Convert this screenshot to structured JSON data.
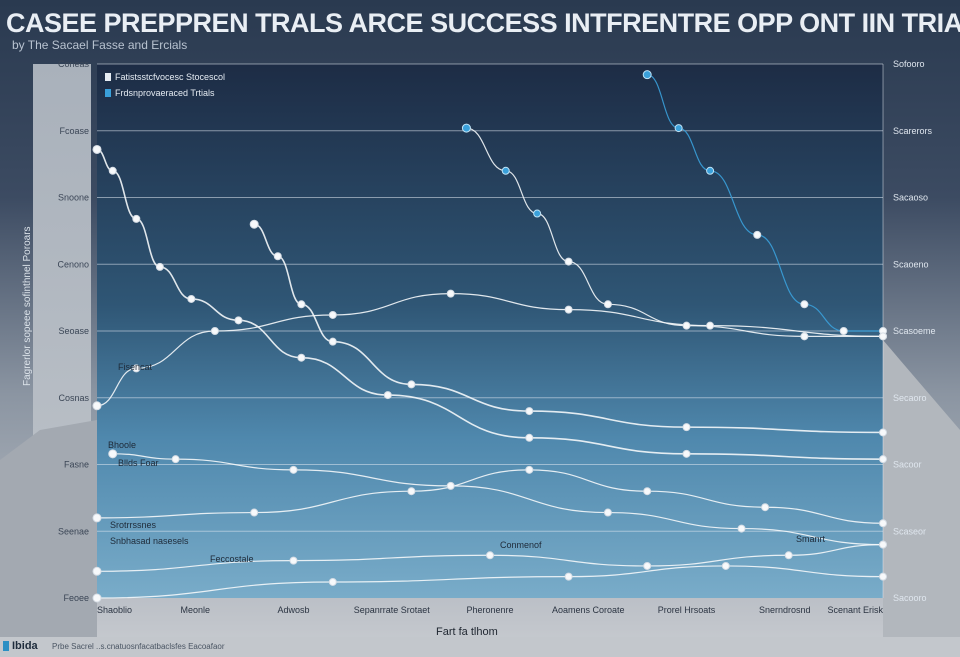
{
  "header": {
    "title": "CASEE PREPPREN TRALS ARCE SUCCESS INTFRENTRE OPP ONT IIN TRIALS",
    "subtitle": "by The Sacael Fasse and Ercials"
  },
  "footer": {
    "title": "Ibida",
    "note": "Prbe Sacrel ..s.cnatuosnfacatbaclsfes Eacoafaor"
  },
  "colors": {
    "accent": "#2a8fc4",
    "line": "#f4f7fa",
    "grid": "#dfe6ee",
    "marker_blue": "#3aa0da"
  },
  "chart_data": {
    "type": "line",
    "xlabel": "Fart fa tlhom",
    "ylabel": "Fagrerlor sopeee sofinthnel Poroars",
    "categories": [
      "Shaoblio",
      "Meonle",
      "Adwosb",
      "Sepanrrate Srotaet",
      "Pheronenre",
      "Aoamens Coroate",
      "Prorel Hrsoats",
      "Snerndrosnd",
      "Scenant Erisk"
    ],
    "y_ticks_left": [
      "Coneas",
      "Fcoase",
      "Snoone",
      "Cenono",
      "Seoase",
      "Cosnas",
      "Fasne",
      "Seenae",
      "Feoee"
    ],
    "y_ticks_right": [
      "Sofooro",
      "Scarerors",
      "Sacaoso",
      "Scaoeno",
      "Scasoeme",
      "Secaoro",
      "Sacoor",
      "Scaseor",
      "Sacooro"
    ],
    "ylim": [
      0,
      100
    ],
    "grid": true,
    "legend": {
      "position": "top-left",
      "entries": [
        "Fatistsstcfvocesc Stocescol",
        "Frdsnprovaeraced Trtials"
      ]
    },
    "annotations": [
      "Fisencat",
      "Bhoole",
      "Bllds Foar",
      "Srotrrssnes",
      "Snbhasad nasesels",
      "Feccostale",
      "Conmenof",
      "Smanrt"
    ],
    "series": [
      {
        "values": [
          [
            0,
            84
          ],
          [
            2,
            80
          ],
          [
            5,
            71
          ],
          [
            8,
            62
          ],
          [
            12,
            56
          ],
          [
            18,
            52
          ],
          [
            26,
            45
          ],
          [
            37,
            38
          ],
          [
            55,
            30
          ],
          [
            75,
            27
          ],
          [
            100,
            26
          ]
        ]
      },
      {
        "values": [
          [
            20,
            70
          ],
          [
            23,
            64
          ],
          [
            26,
            55
          ],
          [
            30,
            48
          ],
          [
            40,
            40
          ],
          [
            55,
            35
          ],
          [
            75,
            32
          ],
          [
            100,
            31
          ]
        ]
      },
      {
        "values": [
          [
            47,
            88
          ],
          [
            52,
            80
          ],
          [
            56,
            72
          ],
          [
            60,
            63
          ],
          [
            65,
            55
          ],
          [
            75,
            51
          ],
          [
            90,
            49
          ],
          [
            100,
            49
          ]
        ]
      },
      {
        "values": [
          [
            70,
            98
          ],
          [
            74,
            88
          ],
          [
            78,
            80
          ],
          [
            84,
            68
          ],
          [
            90,
            55
          ],
          [
            95,
            50
          ],
          [
            100,
            50
          ]
        ]
      },
      {
        "values": [
          [
            0,
            36
          ],
          [
            5,
            43
          ],
          [
            15,
            50
          ],
          [
            30,
            53
          ],
          [
            45,
            57
          ],
          [
            60,
            54
          ],
          [
            78,
            51
          ],
          [
            100,
            49
          ]
        ]
      },
      {
        "values": [
          [
            2,
            27
          ],
          [
            10,
            26
          ],
          [
            25,
            24
          ],
          [
            45,
            21
          ],
          [
            65,
            16
          ],
          [
            82,
            13
          ],
          [
            100,
            10
          ]
        ]
      },
      {
        "values": [
          [
            0,
            15
          ],
          [
            20,
            16
          ],
          [
            40,
            20
          ],
          [
            55,
            24
          ],
          [
            70,
            20
          ],
          [
            85,
            17
          ],
          [
            100,
            14
          ]
        ]
      },
      {
        "values": [
          [
            0,
            5
          ],
          [
            25,
            7
          ],
          [
            50,
            8
          ],
          [
            70,
            6
          ],
          [
            88,
            8
          ],
          [
            100,
            10
          ]
        ]
      },
      {
        "values": [
          [
            0,
            0
          ],
          [
            30,
            3
          ],
          [
            60,
            4
          ],
          [
            80,
            6
          ],
          [
            100,
            4
          ]
        ]
      }
    ]
  }
}
